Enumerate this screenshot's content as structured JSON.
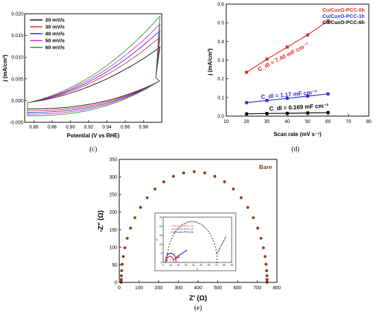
{
  "chart_data": [
    {
      "type": "line",
      "panel": "c",
      "caption": "(c)",
      "xlabel": "Potential (V vs RHE)",
      "ylabel": "j (mA/cm²)",
      "xlim": [
        0.85,
        1.0
      ],
      "ylim": [
        -0.005,
        0.02
      ],
      "xticks": [
        "0.86",
        "0.88",
        "0.90",
        "0.92",
        "0.94",
        "0.96",
        "0.98"
      ],
      "yticks": [
        "-0.005",
        "0.000",
        "0.005",
        "0.010",
        "0.015",
        "0.020"
      ],
      "legend_position": "top-left",
      "series": [
        {
          "name": "20 mV/s",
          "color": "#000000",
          "upper_end": 0.0122,
          "lower_start": -0.0019
        },
        {
          "name": "30 mV/s",
          "color": "#e8262a",
          "upper_end": 0.0145,
          "lower_start": -0.0023
        },
        {
          "name": "40 mV/s",
          "color": "#2b2bd8",
          "upper_end": 0.016,
          "lower_start": -0.0027
        },
        {
          "name": "50 mV/s",
          "color": "#e020e0",
          "upper_end": 0.0175,
          "lower_start": -0.0031
        },
        {
          "name": "60 mV/s",
          "color": "#1f9a1f",
          "upper_end": 0.0193,
          "lower_start": -0.0035
        }
      ]
    },
    {
      "type": "scatter",
      "panel": "d",
      "caption": "(d)",
      "xlabel": "Scan rate (mV s⁻¹)",
      "ylabel": "j (mA/cm²)",
      "xlim": [
        10,
        80
      ],
      "ylim": [
        0,
        0.6
      ],
      "xticks": [
        "10",
        "20",
        "30",
        "40",
        "50",
        "60",
        "70",
        "80"
      ],
      "yticks": [
        "0.0",
        "0.1",
        "0.2",
        "0.3",
        "0.4",
        "0.5",
        "0.6"
      ],
      "x": [
        20,
        30,
        40,
        50,
        60
      ],
      "legend_position": "top-right",
      "series": [
        {
          "name": "Cu/CuxO-PCC-0h",
          "color": "#e8262a",
          "values": [
            0.235,
            0.305,
            0.37,
            0.435,
            0.51
          ],
          "annotation": "C_dl = 7.40 mF cm⁻²"
        },
        {
          "name": "Cu/CuxO-PCC-1h",
          "color": "#2b2bd8",
          "values": [
            0.072,
            0.084,
            0.095,
            0.107,
            0.119
          ],
          "annotation": "C_dl = 1.17 mF cm⁻²"
        },
        {
          "name": "Cu/CuxO-PCC-6h",
          "color": "#000000",
          "values": [
            0.012,
            0.014,
            0.015,
            0.017,
            0.019
          ],
          "annotation": "C_dl = 0.169 mF cm⁻²"
        }
      ]
    },
    {
      "type": "scatter",
      "panel": "e",
      "caption": "(e)",
      "xlabel": "Z' (Ω)",
      "ylabel": "-Z'' (Ω)",
      "xlim": [
        0,
        800
      ],
      "ylim": [
        0,
        350
      ],
      "xticks": [
        "0",
        "100",
        "200",
        "300",
        "400",
        "500",
        "600",
        "700",
        "800"
      ],
      "yticks": [
        "0",
        "50",
        "100",
        "150",
        "200",
        "250",
        "300",
        "350"
      ],
      "series": [
        {
          "name": "Bare",
          "color": "#8b3a0f",
          "center": 380,
          "radius": 370,
          "peak": 315
        }
      ],
      "inset": {
        "xlabel": "Z'",
        "ylabel": "-Z''",
        "xlim": [
          0,
          90
        ],
        "ylim": [
          0,
          25
        ],
        "xticks": [
          "0",
          "10",
          "20",
          "30",
          "40",
          "50",
          "60",
          "70",
          "80",
          "90"
        ],
        "yticks": [
          "0",
          "5",
          "10",
          "15",
          "20",
          "25"
        ],
        "series": [
          {
            "name": "Cu/CuxO-PCC-0h",
            "color": "#e8262a"
          },
          {
            "name": "Cu/CuxO-PCC-1h",
            "color": "#2b2bd8"
          },
          {
            "name": "Cu/CuxO-PCC-6h",
            "color": "#000000"
          }
        ]
      }
    }
  ]
}
